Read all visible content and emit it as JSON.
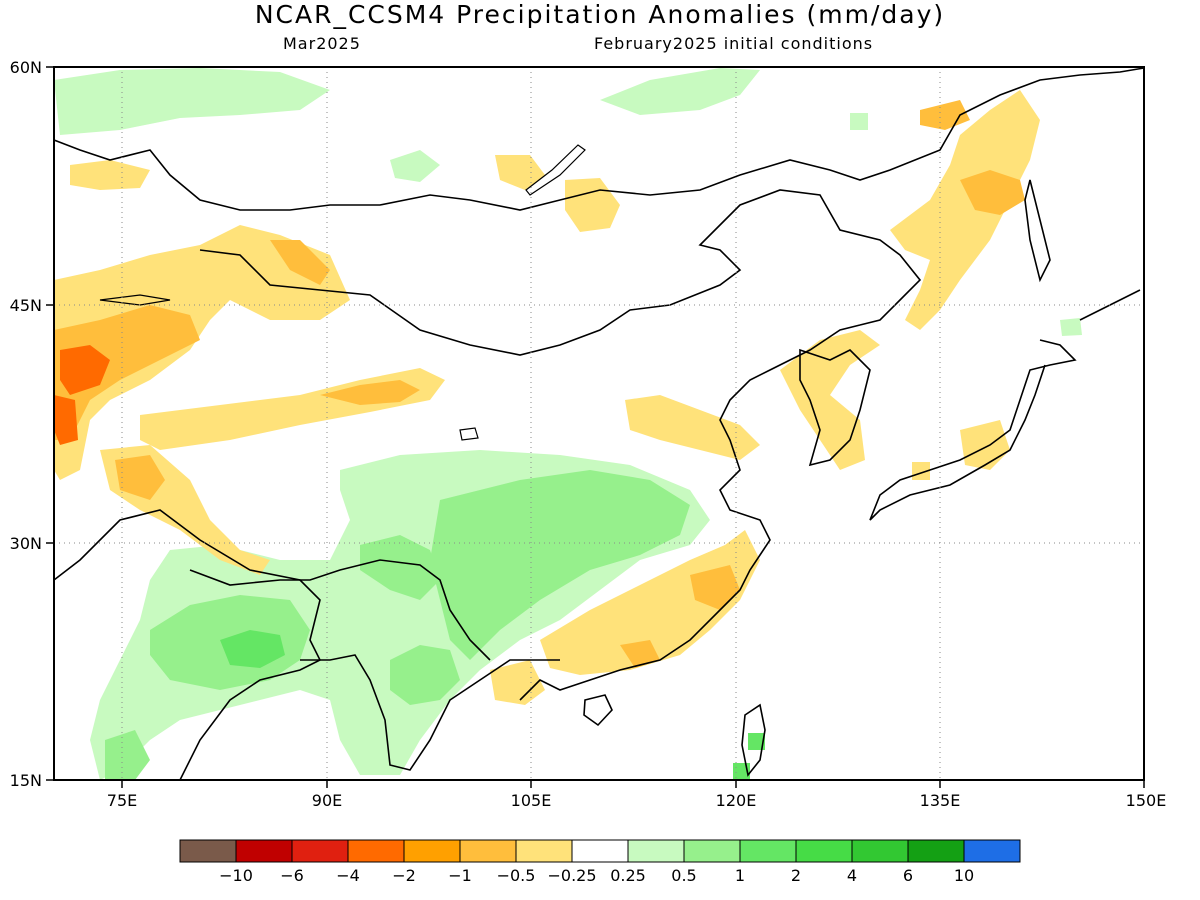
{
  "header": {
    "title": "NCAR_CCSM4 Precipitation Anomalies (mm/day)",
    "valid_month": "Mar2025",
    "init_conditions": "February2025 initial conditions"
  },
  "map": {
    "lon_range": [
      70,
      150
    ],
    "lat_range": [
      15,
      60
    ],
    "lon_ticks": [
      {
        "value": 75,
        "label": "75E"
      },
      {
        "value": 90,
        "label": "90E"
      },
      {
        "value": 105,
        "label": "105E"
      },
      {
        "value": 120,
        "label": "120E"
      },
      {
        "value": 135,
        "label": "135E"
      },
      {
        "value": 150,
        "label": "150E"
      }
    ],
    "lat_ticks": [
      {
        "value": 60,
        "label": "60N"
      },
      {
        "value": 45,
        "label": "45N"
      },
      {
        "value": 30,
        "label": "30N"
      },
      {
        "value": 15,
        "label": "15N"
      }
    ],
    "gridlines": true
  },
  "legend": {
    "colors": [
      "#7a5a4a",
      "#c00000",
      "#e02010",
      "#ff6a00",
      "#ffa000",
      "#ffbe3c",
      "#ffe27a",
      "#ffffff",
      "#c8fac0",
      "#96f08c",
      "#64e664",
      "#46dc46",
      "#32c832",
      "#14a014",
      "#1e6ee6"
    ],
    "labels": [
      "-10",
      "-6",
      "-4",
      "-2",
      "-1",
      "-0.5",
      "-0.25",
      "0.25",
      "0.5",
      "1",
      "2",
      "4",
      "6",
      "10"
    ]
  }
}
